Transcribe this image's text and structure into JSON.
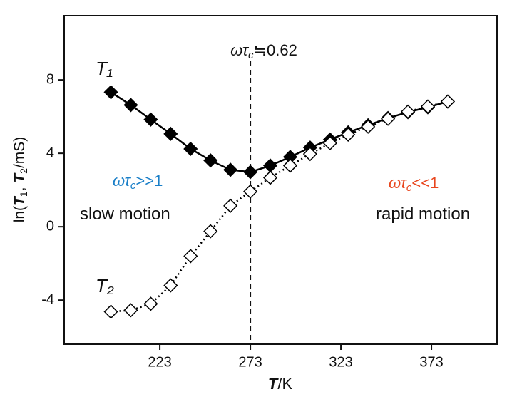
{
  "chart_data": {
    "type": "line",
    "x_label_parts": [
      "T",
      "/K"
    ],
    "y_label_parts": [
      "ln(",
      "T",
      "1",
      ", ",
      "T",
      "2",
      "/mS)"
    ],
    "xlim": [
      170.2,
      409.2
    ],
    "ylim": [
      -6.4,
      11.5
    ],
    "xticks": [
      223,
      273,
      323,
      373
    ],
    "yticks": [
      8,
      4,
      0,
      -4
    ],
    "x": [
      196,
      207,
      218,
      229,
      240,
      251,
      262,
      273,
      284,
      295,
      306,
      317,
      327,
      338,
      349,
      360,
      371,
      382
    ],
    "series": [
      {
        "name": "T₁",
        "color": "#000000",
        "marker_fill": "#000000",
        "line_style": "solid",
        "values": [
          7.33,
          6.63,
          5.84,
          5.06,
          4.24,
          3.61,
          3.1,
          2.98,
          3.33,
          3.8,
          4.31,
          4.75,
          5.14,
          5.53,
          5.92,
          6.24,
          6.51,
          6.82
        ]
      },
      {
        "name": "T₂",
        "color": "#000000",
        "marker_fill": "#ffffff",
        "line_style": "dotted",
        "values": [
          -4.63,
          -4.55,
          -4.2,
          -3.2,
          -1.6,
          -0.25,
          1.14,
          1.92,
          2.67,
          3.33,
          3.96,
          4.55,
          5.02,
          5.45,
          5.88,
          6.27,
          6.55,
          6.82
        ]
      }
    ],
    "vline": {
      "x": 273,
      "label_parts": [
        "ωτ",
        "c",
        "≒0.62"
      ]
    },
    "annotations": [
      {
        "parts": [
          "ωτ",
          "c",
          ">>1"
        ],
        "color": "#1a7fc8"
      },
      {
        "parts": [
          "slow motion"
        ],
        "color": "#111111"
      },
      {
        "parts": [
          "ωτ",
          "c",
          "<<1"
        ],
        "color": "#e8461e"
      },
      {
        "parts": [
          "rapid motion"
        ],
        "color": "#111111"
      }
    ]
  }
}
